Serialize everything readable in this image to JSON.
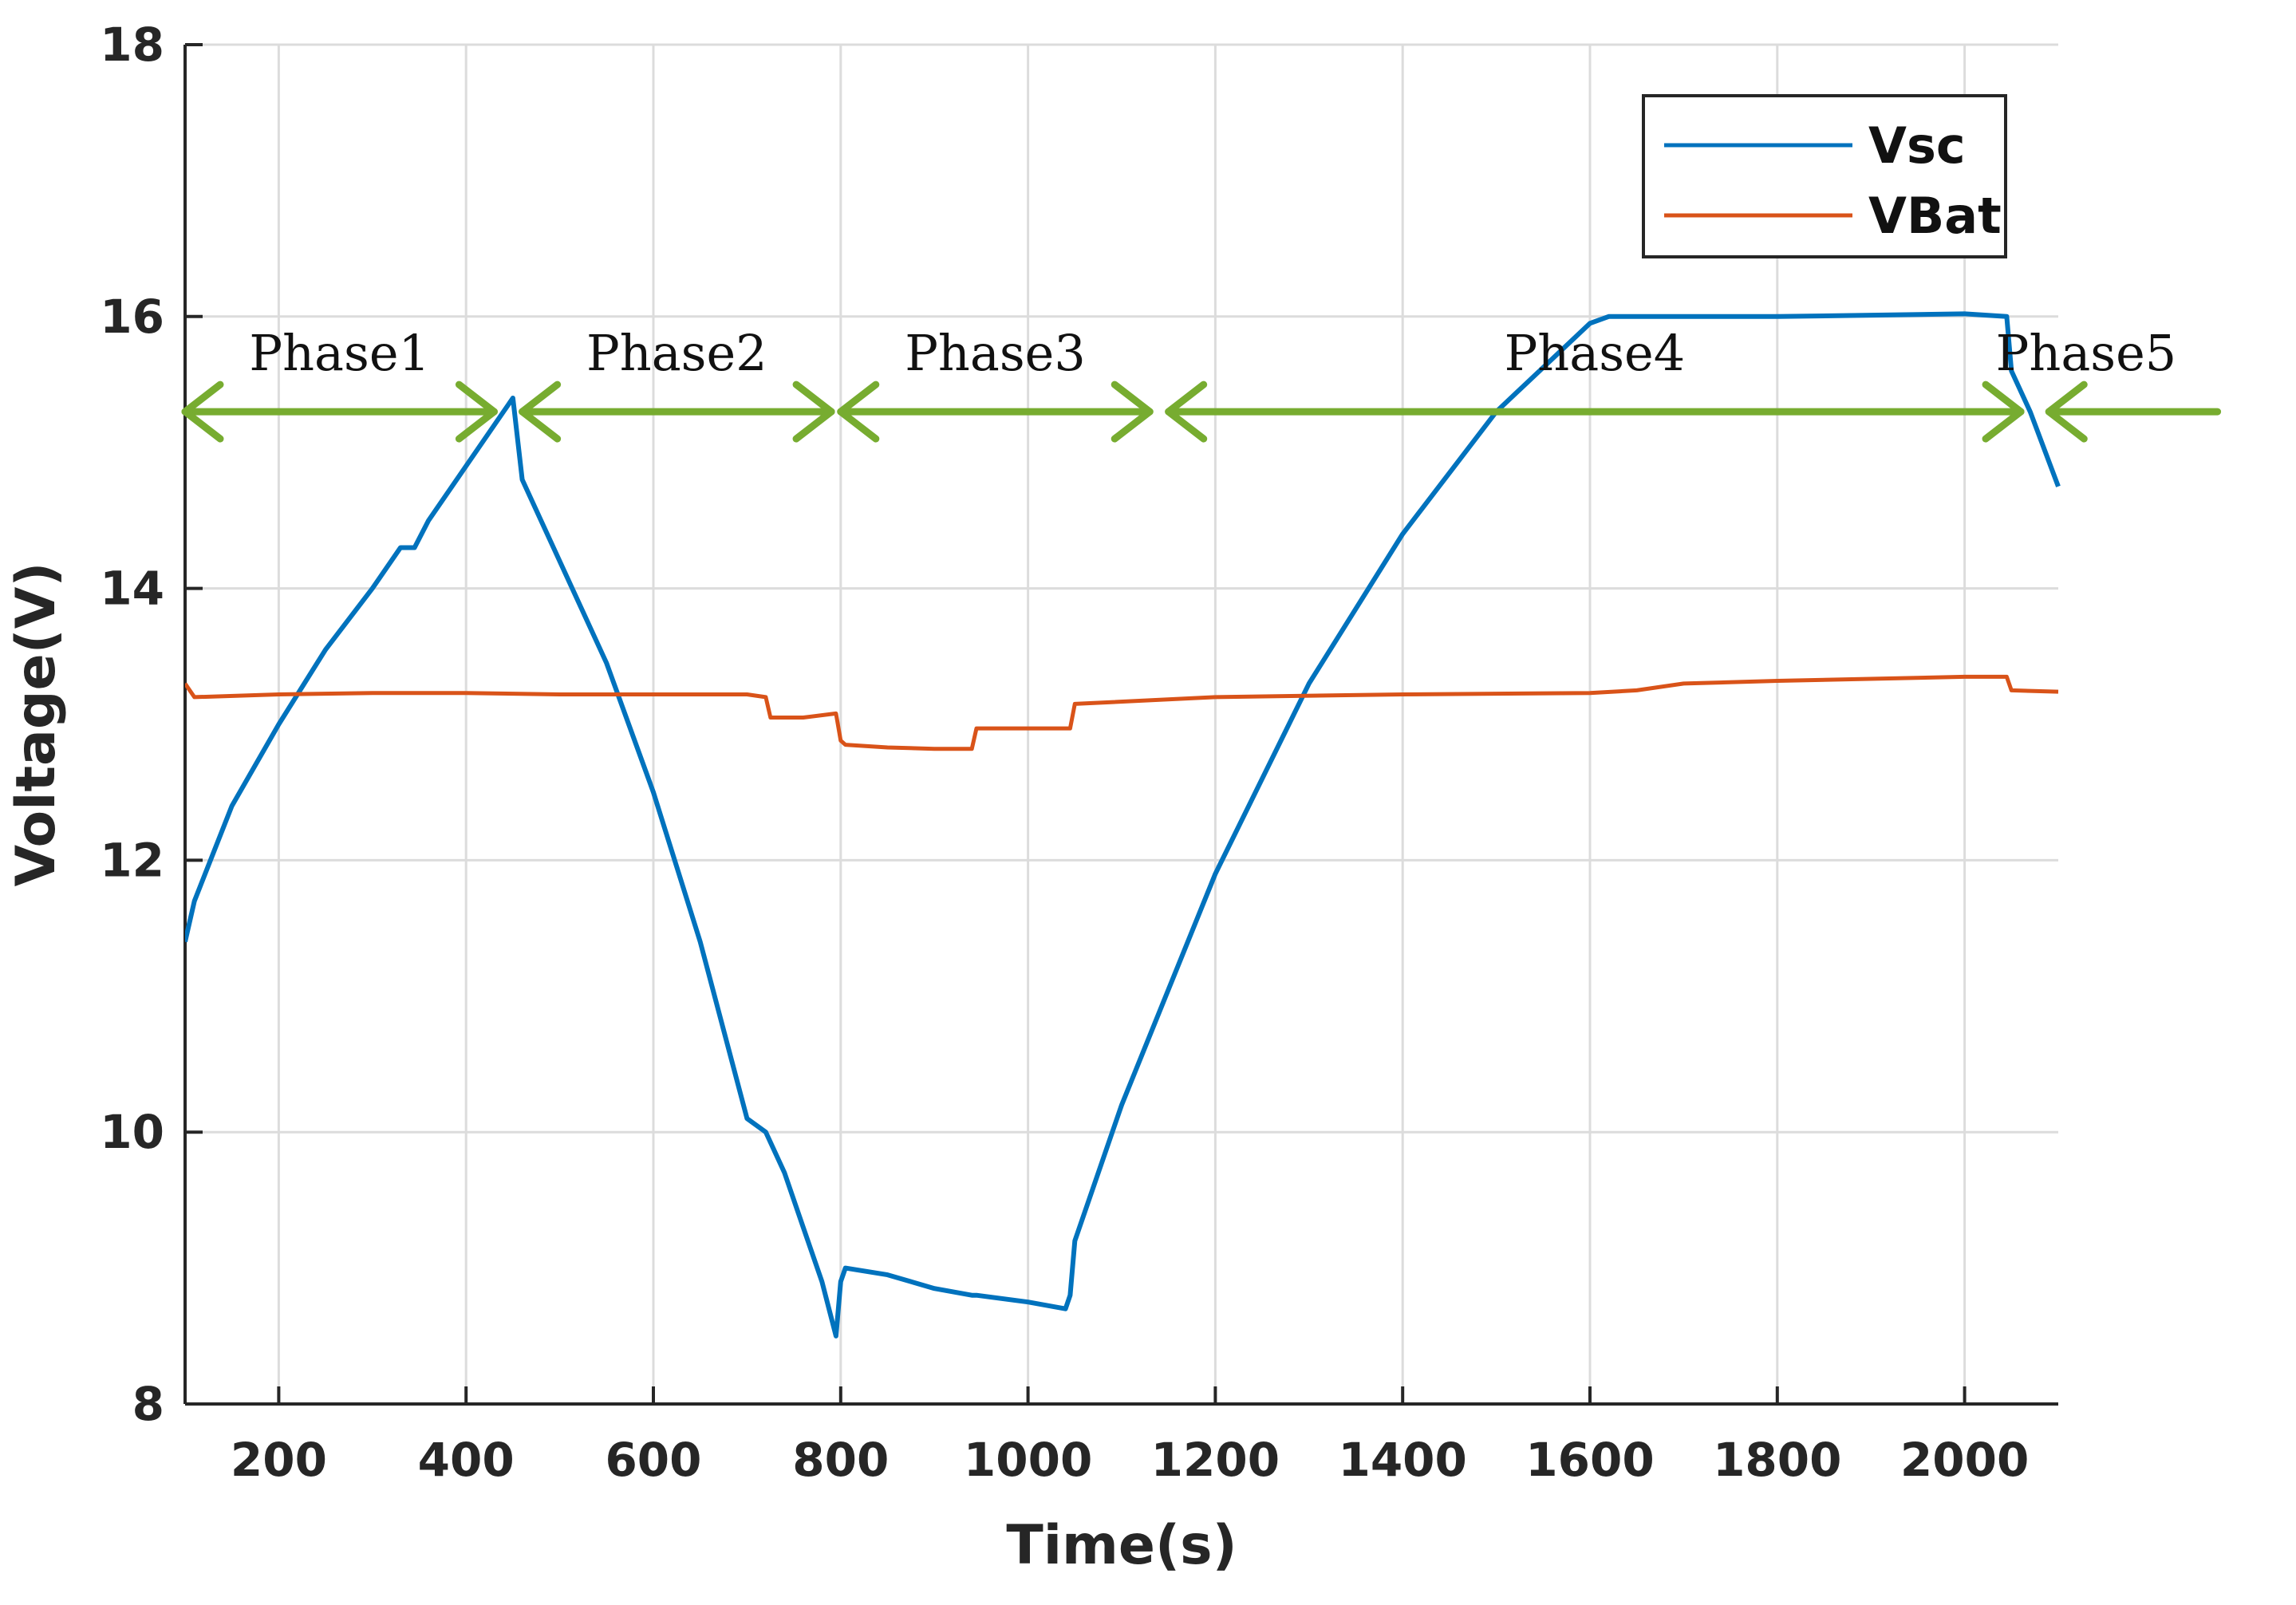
{
  "chart_data": {
    "type": "line",
    "title": "",
    "xlabel": "Time(s)",
    "ylabel": "Voltage(V)",
    "xlim": [
      100,
      2100
    ],
    "ylim": [
      8,
      18
    ],
    "xticks": [
      200,
      400,
      600,
      800,
      1000,
      1200,
      1400,
      1600,
      1800,
      2000
    ],
    "yticks": [
      8,
      10,
      12,
      14,
      16,
      18
    ],
    "grid": true,
    "legend_position": "top-right",
    "colors": {
      "Vsc": "#0072BD",
      "VBat": "#D95319",
      "arrows": "#77AC30"
    },
    "series": [
      {
        "name": "Vsc",
        "x": [
          100,
          110,
          150,
          200,
          250,
          300,
          330,
          345,
          360,
          400,
          450,
          460,
          500,
          550,
          600,
          650,
          700,
          720,
          740,
          760,
          780,
          795,
          800,
          805,
          850,
          900,
          940,
          945,
          1000,
          1040,
          1045,
          1050,
          1100,
          1200,
          1300,
          1400,
          1500,
          1600,
          1620,
          1800,
          2000,
          2045,
          2050,
          2070,
          2100
        ],
        "values": [
          11.4,
          11.7,
          12.4,
          13.0,
          13.55,
          14.0,
          14.3,
          14.3,
          14.5,
          14.9,
          15.4,
          14.8,
          14.2,
          13.45,
          12.5,
          11.4,
          10.1,
          10.0,
          9.7,
          9.3,
          8.9,
          8.5,
          8.9,
          9.0,
          8.95,
          8.85,
          8.8,
          8.8,
          8.75,
          8.7,
          8.8,
          9.2,
          10.2,
          11.9,
          13.3,
          14.4,
          15.3,
          15.95,
          16.0,
          16.0,
          16.02,
          16.0,
          15.6,
          15.3,
          14.75
        ]
      },
      {
        "name": "VBat",
        "x": [
          100,
          110,
          200,
          300,
          400,
          500,
          600,
          700,
          720,
          725,
          760,
          795,
          800,
          805,
          850,
          900,
          940,
          945,
          1000,
          1045,
          1050,
          1200,
          1400,
          1600,
          1650,
          1700,
          1800,
          2000,
          2045,
          2050,
          2100
        ],
        "values": [
          13.3,
          13.2,
          13.22,
          13.23,
          13.23,
          13.22,
          13.22,
          13.22,
          13.2,
          13.05,
          13.05,
          13.08,
          12.88,
          12.85,
          12.83,
          12.82,
          12.82,
          12.97,
          12.97,
          12.97,
          13.15,
          13.2,
          13.22,
          13.23,
          13.25,
          13.3,
          13.32,
          13.35,
          13.35,
          13.25,
          13.24
        ]
      }
    ],
    "annotations": [
      {
        "label": "Phase1",
        "x_from": 100,
        "x_to": 430
      },
      {
        "label": "Phase2",
        "x_from": 460,
        "x_to": 790
      },
      {
        "label": "Phase3",
        "x_from": 800,
        "x_to": 1130
      },
      {
        "label": "Phase4",
        "x_from": 1150,
        "x_to": 2060
      },
      {
        "label": "Phase5",
        "x_from": 2090,
        "x_to": 2270
      }
    ],
    "annotation_level": 15.3
  }
}
